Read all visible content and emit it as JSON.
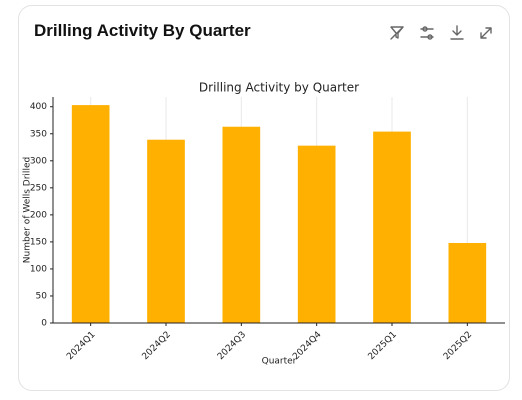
{
  "card": {
    "title": "Drilling Activity By Quarter"
  },
  "chart_data": {
    "type": "bar",
    "title": "Drilling Activity by Quarter",
    "x_label": "Quarter",
    "y_label": "Number of Wells Drilled",
    "categories": [
      "2024Q1",
      "2024Q2",
      "2024Q3",
      "2024Q4",
      "2025Q1",
      "2025Q2"
    ],
    "values": [
      403,
      339,
      363,
      328,
      354,
      148
    ],
    "color": "#ffb000",
    "ylim": [
      0,
      418
    ],
    "yticks": [
      0,
      50,
      100,
      150,
      200,
      250,
      300,
      350,
      400
    ],
    "grid": true
  }
}
